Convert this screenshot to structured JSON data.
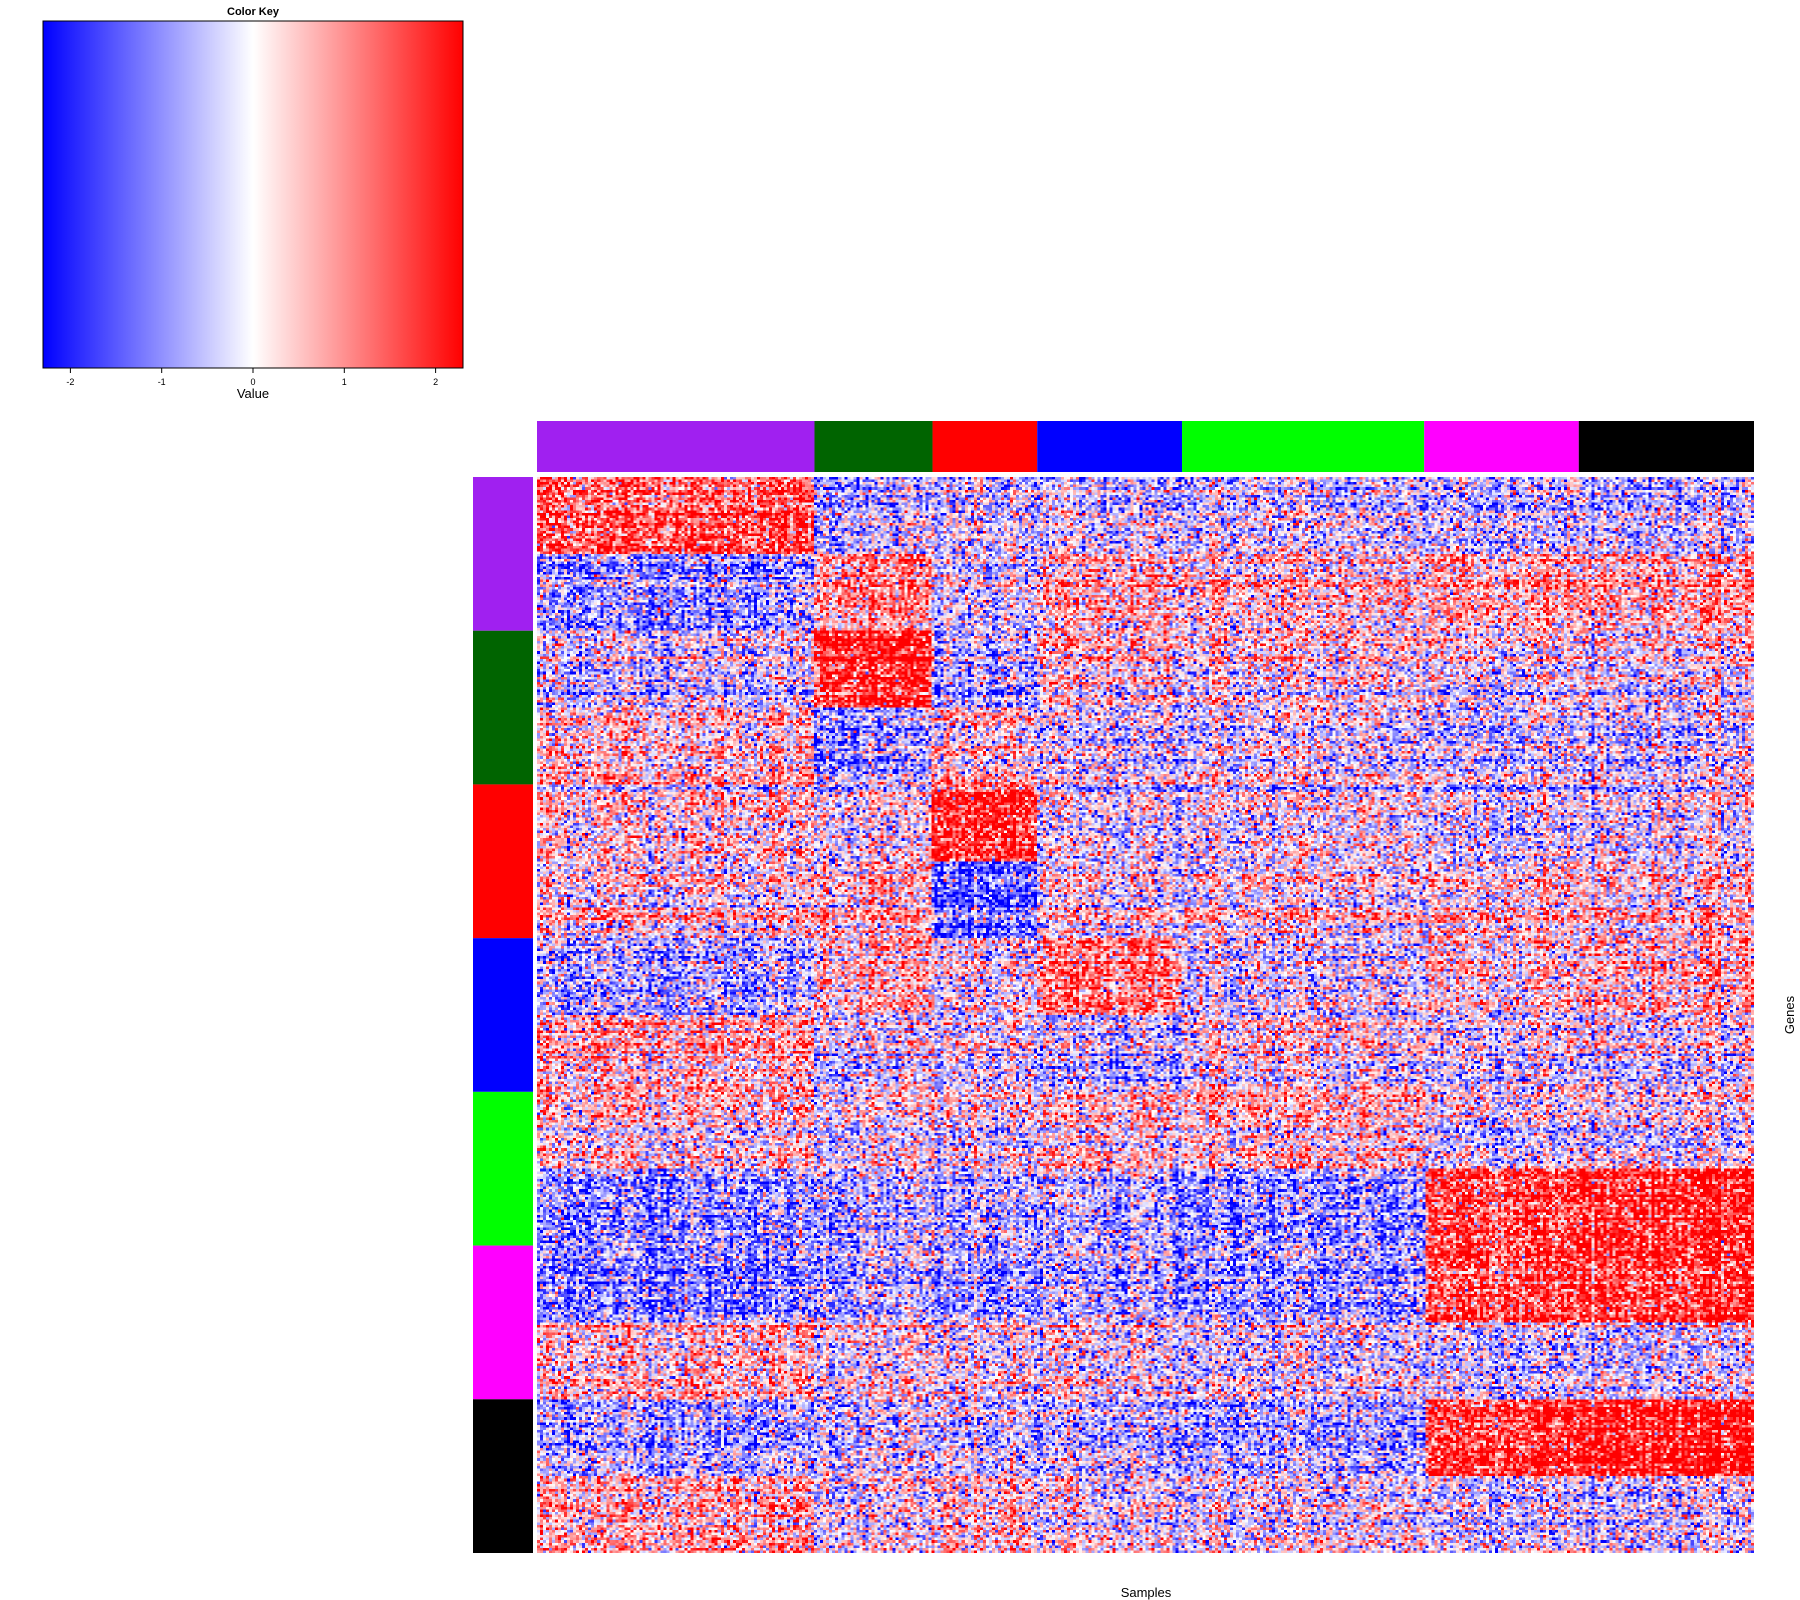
{
  "chart_data": {
    "type": "heatmap",
    "color_key": {
      "title": "Color Key",
      "xlabel": "Value",
      "range": [
        -2.3,
        2.3
      ],
      "ticks": [
        -2,
        -1,
        0,
        1,
        2
      ],
      "tick_labels": [
        "-2",
        "-1",
        "0",
        "1",
        "2"
      ],
      "colors": {
        "low": "#0000ff",
        "mid": "#ffffff",
        "high": "#ff0000"
      }
    },
    "xlabel": "Samples",
    "ylabel": "Genes",
    "sample_groups": [
      {
        "color": "#a020f0",
        "fraction": 0.228
      },
      {
        "color": "#006400",
        "fraction": 0.097
      },
      {
        "color": "#ff0000",
        "fraction": 0.086
      },
      {
        "color": "#0000ff",
        "fraction": 0.119
      },
      {
        "color": "#00ff00",
        "fraction": 0.199
      },
      {
        "color": "#ff00ff",
        "fraction": 0.127
      },
      {
        "color": "#000000",
        "fraction": 0.144
      }
    ],
    "gene_groups": [
      {
        "color": "#a020f0"
      },
      {
        "color": "#006400"
      },
      {
        "color": "#ff0000"
      },
      {
        "color": "#0000ff"
      },
      {
        "color": "#00ff00"
      },
      {
        "color": "#ff00ff"
      },
      {
        "color": "#000000"
      }
    ],
    "block_pattern_note_free": true,
    "row_subblocks_per_gene_group": 2,
    "mean_values": [
      [
        1.6,
        -0.5,
        -0.4,
        -0.3,
        -0.3,
        -0.4,
        -0.4
      ],
      [
        -1.0,
        0.8,
        -0.4,
        0.4,
        0.3,
        0.7,
        0.7
      ],
      [
        -0.2,
        2.2,
        -0.6,
        0.4,
        0.3,
        0.2,
        0.1
      ],
      [
        0.4,
        -0.9,
        0.3,
        -0.3,
        -0.1,
        -0.3,
        -0.3
      ],
      [
        0.3,
        0.0,
        2.0,
        -0.2,
        0.0,
        -0.2,
        -0.2
      ],
      [
        0.3,
        0.6,
        -1.4,
        0.2,
        0.2,
        0.4,
        0.4
      ],
      [
        -0.7,
        0.5,
        0.0,
        1.1,
        -0.3,
        0.3,
        0.5
      ],
      [
        0.6,
        -0.2,
        -0.2,
        -0.6,
        0.0,
        -0.2,
        -0.2
      ],
      [
        0.3,
        -0.1,
        -0.1,
        0.2,
        0.4,
        -0.2,
        -0.1
      ],
      [
        -0.9,
        -0.6,
        -0.7,
        -0.6,
        -1.0,
        1.8,
        2.1
      ],
      [
        -1.0,
        -0.6,
        -0.8,
        -0.6,
        -0.8,
        1.8,
        2.0
      ],
      [
        0.4,
        0.0,
        -0.1,
        -0.1,
        -0.2,
        -0.3,
        -0.3
      ],
      [
        -0.9,
        -0.5,
        -0.6,
        -0.7,
        -0.9,
        1.8,
        2.2
      ],
      [
        0.6,
        -0.1,
        0.3,
        -0.1,
        -0.1,
        -0.3,
        -0.4
      ]
    ]
  }
}
